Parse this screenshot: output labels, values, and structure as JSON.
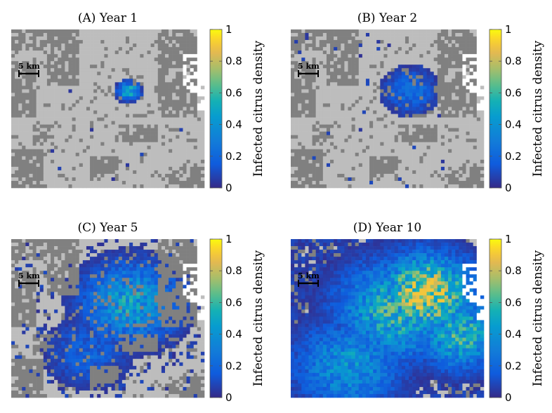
{
  "chart_data": [
    {
      "type": "heatmap",
      "title": "(A) Year 1",
      "colorbar_label": "Infected citrus density",
      "colorbar_range": [
        0,
        1
      ],
      "colorbar_ticks": [
        "0",
        "0.2",
        "0.4",
        "0.6",
        "0.8",
        "1"
      ],
      "scale_bar": "5 km",
      "infection": {
        "centers": [
          {
            "x": 0.61,
            "y": 0.39,
            "peak": 0.55,
            "spread": 0.035
          }
        ],
        "scatter_density": 0.006,
        "max": 0.6
      }
    },
    {
      "type": "heatmap",
      "title": "(B) Year 2",
      "colorbar_label": "Infected citrus density",
      "colorbar_range": [
        0,
        1
      ],
      "colorbar_ticks": [
        "0",
        "0.2",
        "0.4",
        "0.6",
        "0.8",
        "1"
      ],
      "scale_bar": "5 km",
      "infection": {
        "centers": [
          {
            "x": 0.62,
            "y": 0.39,
            "peak": 0.22,
            "spread": 0.09
          }
        ],
        "scatter_density": 0.02,
        "max": 0.25
      }
    },
    {
      "type": "heatmap",
      "title": "(C) Year 5",
      "colorbar_label": "Infected citrus density",
      "colorbar_range": [
        0,
        1
      ],
      "colorbar_ticks": [
        "0",
        "0.2",
        "0.4",
        "0.6",
        "0.8",
        "1"
      ],
      "scale_bar": "5 km",
      "infection": {
        "centers": [
          {
            "x": 0.62,
            "y": 0.4,
            "peak": 0.45,
            "spread": 0.16
          },
          {
            "x": 0.4,
            "y": 0.72,
            "peak": 0.18,
            "spread": 0.14
          }
        ],
        "scatter_density": 0.18,
        "max": 0.6
      }
    },
    {
      "type": "heatmap",
      "title": "(D) Year 10",
      "colorbar_label": "Infected citrus density",
      "colorbar_range": [
        0,
        1
      ],
      "colorbar_ticks": [
        "0",
        "0.2",
        "0.4",
        "0.6",
        "0.8",
        "1"
      ],
      "scale_bar": "5 km",
      "infection": {
        "centers": [
          {
            "x": 0.7,
            "y": 0.35,
            "peak": 0.85,
            "spread": 0.16
          },
          {
            "x": 0.55,
            "y": 0.45,
            "peak": 0.55,
            "spread": 0.2
          },
          {
            "x": 0.88,
            "y": 0.6,
            "peak": 0.55,
            "spread": 0.14
          },
          {
            "x": 0.3,
            "y": 0.8,
            "peak": 0.4,
            "spread": 0.18
          }
        ],
        "scatter_density": 0.75,
        "max": 0.9
      }
    }
  ],
  "colors": {
    "land_light": "#bdbdbd",
    "land_dark": "#808080",
    "water": "#ffffff",
    "colormap": "parula"
  }
}
